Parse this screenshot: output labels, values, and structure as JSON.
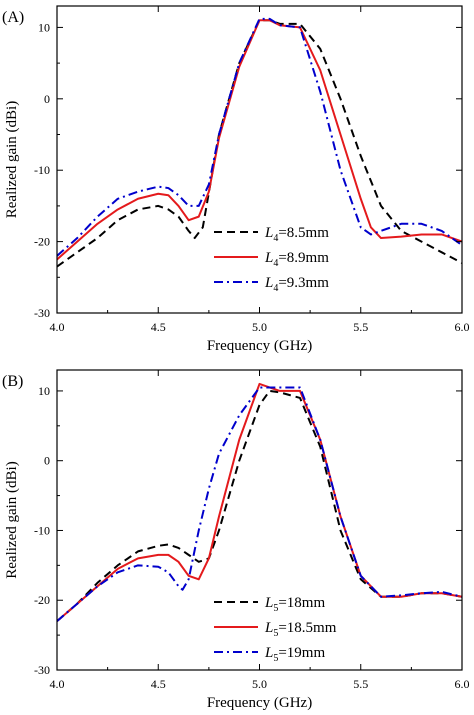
{
  "chart_data": [
    {
      "type": "line",
      "panel_label": "(A)",
      "xlabel": "Frequency (GHz)",
      "ylabel": "Realized gain (dBi)",
      "xlim": [
        4.0,
        6.0
      ],
      "ylim": [
        -30,
        13
      ],
      "xticks": [
        "4.0",
        "4.5",
        "5.0",
        "5.5",
        "6.0"
      ],
      "yticks": [
        "10",
        "0",
        "-10",
        "-20",
        "-30"
      ],
      "xtick_values": [
        4.0,
        4.5,
        5.0,
        5.5,
        6.0
      ],
      "ytick_values": [
        10,
        0,
        -10,
        -20,
        -30
      ],
      "legend_position": "bottom-right",
      "series": [
        {
          "label_main": "L",
          "label_sub": "4",
          "label_rest": "=8.5mm",
          "color": "#000000",
          "dash": "dashed",
          "x": [
            4.0,
            4.1,
            4.2,
            4.3,
            4.4,
            4.5,
            4.55,
            4.6,
            4.65,
            4.68,
            4.72,
            4.8,
            4.9,
            5.0,
            5.05,
            5.1,
            5.2,
            5.3,
            5.4,
            5.5,
            5.6,
            5.7,
            5.8,
            5.9,
            6.0
          ],
          "y": [
            -23.5,
            -21.5,
            -19.5,
            -17.0,
            -15.5,
            -15.0,
            -15.5,
            -16.5,
            -18.5,
            -19.5,
            -18.0,
            -5.0,
            5.0,
            11.0,
            11.0,
            10.5,
            10.5,
            7.0,
            0.0,
            -8.0,
            -15.0,
            -18.5,
            -20.0,
            -21.5,
            -23.0
          ]
        },
        {
          "label_main": "L",
          "label_sub": "4",
          "label_rest": "=8.9mm",
          "color": "#e41a1c",
          "dash": "solid",
          "x": [
            4.0,
            4.1,
            4.2,
            4.3,
            4.4,
            4.5,
            4.55,
            4.6,
            4.65,
            4.7,
            4.75,
            4.8,
            4.9,
            5.0,
            5.05,
            5.1,
            5.2,
            5.3,
            5.4,
            5.5,
            5.55,
            5.6,
            5.7,
            5.8,
            5.9,
            6.0
          ],
          "y": [
            -22.5,
            -20.0,
            -17.5,
            -15.5,
            -14.0,
            -13.3,
            -13.5,
            -15.0,
            -17.0,
            -16.5,
            -13.0,
            -5.5,
            4.5,
            11.0,
            11.0,
            10.3,
            10.0,
            4.0,
            -5.0,
            -14.0,
            -18.0,
            -19.5,
            -19.3,
            -19.0,
            -19.0,
            -20.0
          ]
        },
        {
          "label_main": "L",
          "label_sub": "4",
          "label_rest": "=9.3mm",
          "color": "#0000cc",
          "dash": "dashdot",
          "x": [
            4.0,
            4.1,
            4.2,
            4.3,
            4.4,
            4.5,
            4.55,
            4.6,
            4.65,
            4.7,
            4.75,
            4.8,
            4.9,
            5.0,
            5.05,
            5.1,
            5.2,
            5.3,
            5.4,
            5.5,
            5.55,
            5.6,
            5.7,
            5.8,
            5.9,
            6.0
          ],
          "y": [
            -22.0,
            -19.5,
            -16.5,
            -14.0,
            -13.0,
            -12.3,
            -12.5,
            -13.5,
            -15.0,
            -15.0,
            -12.0,
            -5.0,
            5.0,
            11.2,
            11.2,
            10.3,
            10.0,
            1.0,
            -10.0,
            -18.0,
            -19.0,
            -18.5,
            -17.5,
            -17.5,
            -18.5,
            -20.5
          ]
        }
      ]
    },
    {
      "type": "line",
      "panel_label": "(B)",
      "xlabel": "Frequency (GHz)",
      "ylabel": "Realized gain (dBi)",
      "xlim": [
        4.0,
        6.0
      ],
      "ylim": [
        -30,
        13
      ],
      "xticks": [
        "4.0",
        "4.5",
        "5.0",
        "5.5",
        "6.0"
      ],
      "yticks": [
        "10",
        "0",
        "-10",
        "-20",
        "-30"
      ],
      "xtick_values": [
        4.0,
        4.5,
        5.0,
        5.5,
        6.0
      ],
      "ytick_values": [
        10,
        0,
        -10,
        -20,
        -30
      ],
      "legend_position": "bottom-right",
      "series": [
        {
          "label_main": "L",
          "label_sub": "5",
          "label_rest": "=18mm",
          "color": "#000000",
          "dash": "dashed",
          "x": [
            4.0,
            4.1,
            4.2,
            4.3,
            4.4,
            4.5,
            4.55,
            4.6,
            4.65,
            4.7,
            4.75,
            4.8,
            4.9,
            5.0,
            5.05,
            5.1,
            5.2,
            5.3,
            5.4,
            5.5,
            5.6,
            5.7,
            5.8,
            5.9,
            6.0
          ],
          "y": [
            -23.0,
            -20.5,
            -17.5,
            -15.0,
            -13.0,
            -12.2,
            -12.0,
            -12.5,
            -13.5,
            -14.5,
            -14.0,
            -10.0,
            0.0,
            8.0,
            10.0,
            9.8,
            9.0,
            2.0,
            -10.0,
            -17.0,
            -19.5,
            -19.5,
            -19.0,
            -19.0,
            -19.5
          ]
        },
        {
          "label_main": "L",
          "label_sub": "5",
          "label_rest": "=18.5mm",
          "color": "#e41a1c",
          "dash": "solid",
          "x": [
            4.0,
            4.1,
            4.2,
            4.3,
            4.4,
            4.5,
            4.55,
            4.6,
            4.65,
            4.7,
            4.75,
            4.8,
            4.9,
            5.0,
            5.05,
            5.1,
            5.2,
            5.3,
            5.4,
            5.5,
            5.6,
            5.7,
            5.8,
            5.9,
            6.0
          ],
          "y": [
            -23.0,
            -20.5,
            -18.0,
            -15.5,
            -14.0,
            -13.5,
            -13.5,
            -14.5,
            -16.5,
            -17.0,
            -14.0,
            -8.0,
            3.0,
            11.0,
            10.5,
            10.0,
            10.0,
            3.0,
            -8.0,
            -16.5,
            -19.5,
            -19.5,
            -19.0,
            -19.0,
            -19.5
          ]
        },
        {
          "label_main": "L",
          "label_sub": "5",
          "label_rest": "=19mm",
          "color": "#0000cc",
          "dash": "dashdot",
          "x": [
            4.0,
            4.1,
            4.2,
            4.3,
            4.4,
            4.5,
            4.55,
            4.6,
            4.62,
            4.65,
            4.7,
            4.75,
            4.8,
            4.9,
            5.0,
            5.05,
            5.1,
            5.2,
            5.3,
            5.4,
            5.5,
            5.6,
            5.7,
            5.8,
            5.9,
            6.0
          ],
          "y": [
            -23.0,
            -20.5,
            -18.0,
            -16.0,
            -15.0,
            -15.2,
            -16.0,
            -18.0,
            -18.5,
            -17.0,
            -10.0,
            -4.0,
            1.0,
            6.5,
            10.5,
            10.5,
            10.5,
            10.5,
            3.0,
            -8.0,
            -16.5,
            -19.5,
            -19.3,
            -19.0,
            -18.8,
            -19.5
          ]
        }
      ]
    }
  ]
}
